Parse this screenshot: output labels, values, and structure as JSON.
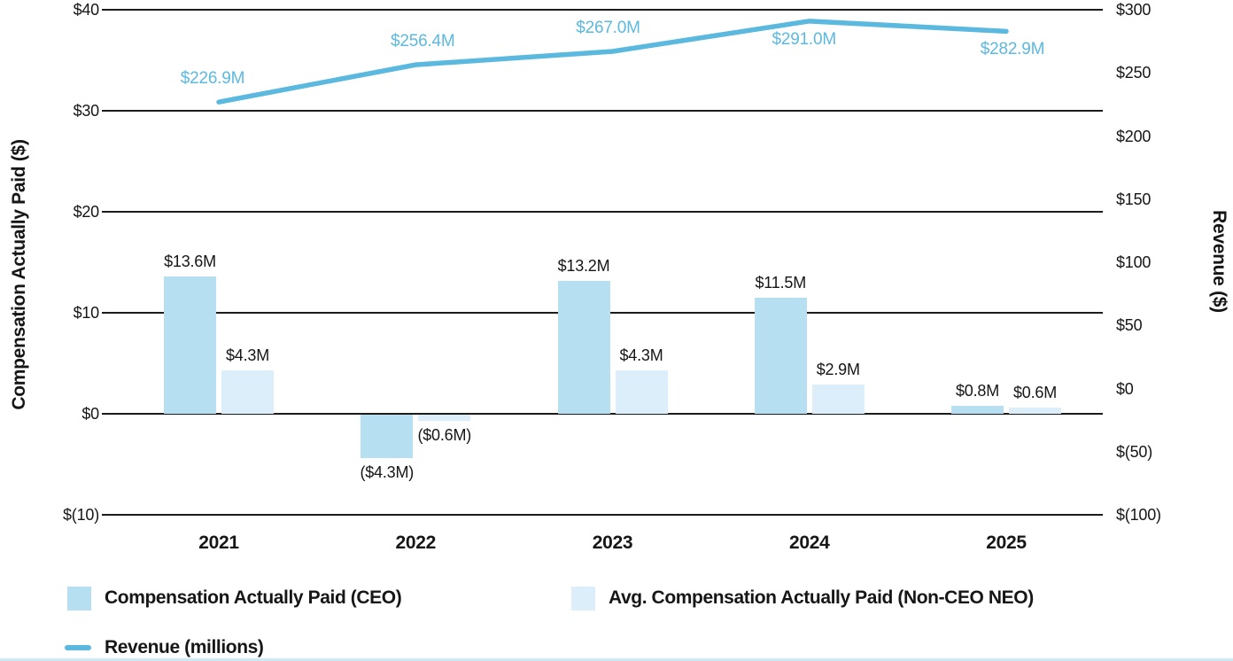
{
  "chart_data": {
    "type": "bar+line combo",
    "categories": [
      "2021",
      "2022",
      "2023",
      "2024",
      "2025"
    ],
    "series": [
      {
        "name": "Compensation Actually Paid (CEO)",
        "type": "bar",
        "axis": "left",
        "color": "#b6dff2",
        "values": [
          13.6,
          -4.3,
          13.2,
          11.5,
          0.8
        ],
        "labels": [
          "$13.6M",
          "($4.3M)",
          "$13.2M",
          "$11.5M",
          "$0.8M"
        ]
      },
      {
        "name": "Avg. Compensation Actually Paid (Non-CEO NEO)",
        "type": "bar",
        "axis": "left",
        "color": "#dceef9",
        "values": [
          4.3,
          -0.6,
          4.3,
          2.9,
          0.6
        ],
        "labels": [
          "$4.3M",
          "($0.6M)",
          "$4.3M",
          "$2.9M",
          "$0.6M"
        ]
      },
      {
        "name": "Revenue (millions)",
        "type": "line",
        "axis": "right",
        "color": "#5bb8de",
        "values": [
          226.9,
          256.4,
          267.0,
          291.0,
          282.9
        ],
        "labels": [
          "$226.9M",
          "$256.4M",
          "$267.0M",
          "$291.0M",
          "$282.9M"
        ],
        "label_placement": [
          "above",
          "above",
          "above",
          "below",
          "below"
        ]
      }
    ],
    "left_axis": {
      "title": "Compensation Actually Paid ($)",
      "ticks": [
        "$40",
        "$30",
        "$20",
        "$10",
        "$0",
        "$(10)"
      ],
      "tick_values": [
        40,
        30,
        20,
        10,
        0,
        -10
      ],
      "range": [
        -10,
        40
      ]
    },
    "right_axis": {
      "title": "Revenue ($)",
      "ticks": [
        "$300",
        "$250",
        "$200",
        "$150",
        "$100",
        "$50",
        "$0",
        "$(50)",
        "$(100)"
      ],
      "tick_values": [
        300,
        250,
        200,
        150,
        100,
        50,
        0,
        -50,
        -100
      ],
      "range": [
        -100,
        300
      ]
    },
    "grid": "horizontal gridlines at left-axis ticks",
    "legend_position": "bottom"
  },
  "legend": {
    "items": [
      {
        "label": "Compensation Actually Paid (CEO)",
        "swatch": "square",
        "color": "#b6dff2"
      },
      {
        "label": "Avg. Compensation Actually Paid (Non-CEO NEO)",
        "swatch": "square",
        "color": "#dceef9"
      },
      {
        "label": "Revenue (millions)",
        "swatch": "line",
        "color": "#5bb8de"
      }
    ]
  },
  "colors": {
    "ceo_bar": "#b6dff2",
    "neo_bar": "#dceef9",
    "revenue_line": "#5bb8de",
    "revenue_label_text": "#5cb9df",
    "axis_text": "#161616",
    "gridline": "#1c1c1c",
    "bottom_strip": "#cfe8f5"
  }
}
